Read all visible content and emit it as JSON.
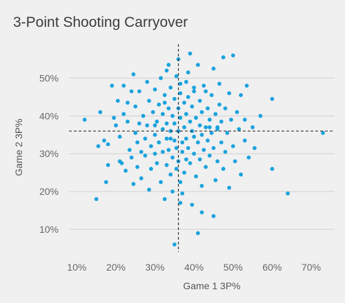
{
  "chart_data": {
    "type": "scatter",
    "title": "3-Point Shooting Carryover",
    "xlabel": "Game 1 3P%",
    "ylabel": "Game 2 3P%",
    "xlim": [
      8,
      76
    ],
    "ylim": [
      4,
      59
    ],
    "xticks": [
      10,
      20,
      30,
      40,
      50,
      60,
      70
    ],
    "yticks": [
      10,
      20,
      30,
      40,
      50
    ],
    "xtick_labels": [
      "10%",
      "20%",
      "30%",
      "40%",
      "50%",
      "60%",
      "70%"
    ],
    "ytick_labels": [
      "10%",
      "20%",
      "30%",
      "40%",
      "50%"
    ],
    "grid": "horizontal",
    "reference_lines": {
      "x": 36,
      "y": 36,
      "style": "dashed"
    },
    "point_color": "#1ba3dd",
    "points": [
      [
        12.0,
        39.0
      ],
      [
        15.0,
        18.0
      ],
      [
        15.5,
        32.0
      ],
      [
        16.0,
        41.0
      ],
      [
        17.0,
        33.5
      ],
      [
        17.5,
        22.5
      ],
      [
        18.0,
        27.0
      ],
      [
        18.0,
        32.5
      ],
      [
        19.0,
        48.0
      ],
      [
        19.5,
        39.5
      ],
      [
        20.0,
        37.5
      ],
      [
        20.5,
        44.0
      ],
      [
        21.0,
        28.0
      ],
      [
        21.0,
        34.5
      ],
      [
        21.5,
        27.5
      ],
      [
        22.0,
        48.0
      ],
      [
        22.0,
        40.5
      ],
      [
        22.5,
        25.5
      ],
      [
        23.0,
        43.5
      ],
      [
        23.0,
        38.5
      ],
      [
        23.5,
        31.0
      ],
      [
        24.0,
        46.5
      ],
      [
        24.0,
        29.0
      ],
      [
        24.5,
        22.0
      ],
      [
        24.5,
        51.0
      ],
      [
        25.0,
        35.5
      ],
      [
        25.0,
        42.5
      ],
      [
        25.5,
        33.0
      ],
      [
        25.5,
        26.5
      ],
      [
        26.0,
        38.0
      ],
      [
        26.0,
        46.5
      ],
      [
        26.5,
        30.5
      ],
      [
        26.5,
        23.5
      ],
      [
        27.0,
        40.0
      ],
      [
        27.5,
        34.0
      ],
      [
        27.5,
        29.5
      ],
      [
        28.0,
        49.0
      ],
      [
        28.0,
        37.5
      ],
      [
        28.5,
        44.0
      ],
      [
        28.5,
        20.5
      ],
      [
        29.0,
        32.0
      ],
      [
        29.0,
        26.0
      ],
      [
        29.5,
        41.0
      ],
      [
        30.0,
        47.0
      ],
      [
        30.0,
        35.0
      ],
      [
        30.0,
        30.0
      ],
      [
        30.5,
        38.5
      ],
      [
        30.5,
        27.5
      ],
      [
        31.0,
        43.0
      ],
      [
        31.0,
        33.0
      ],
      [
        31.5,
        22.5
      ],
      [
        31.5,
        50.0
      ],
      [
        32.0,
        36.5
      ],
      [
        32.0,
        30.5
      ],
      [
        32.0,
        40.5
      ],
      [
        32.5,
        45.5
      ],
      [
        32.5,
        18.0
      ],
      [
        33.0,
        34.0
      ],
      [
        33.0,
        27.0
      ],
      [
        33.0,
        38.0
      ],
      [
        33.5,
        53.5
      ],
      [
        33.5,
        42.0
      ],
      [
        33.5,
        31.0
      ],
      [
        34.0,
        47.5
      ],
      [
        34.0,
        36.0
      ],
      [
        34.0,
        24.5
      ],
      [
        34.5,
        40.0
      ],
      [
        34.5,
        29.0
      ],
      [
        34.5,
        20.0
      ],
      [
        35.0,
        44.5
      ],
      [
        35.0,
        33.5
      ],
      [
        35.0,
        38.0
      ],
      [
        35.5,
        50.5
      ],
      [
        35.5,
        26.0
      ],
      [
        35.5,
        31.5
      ],
      [
        36.0,
        42.0
      ],
      [
        36.0,
        36.0
      ],
      [
        36.0,
        28.0
      ],
      [
        36.0,
        55.0
      ],
      [
        36.5,
        22.5
      ],
      [
        36.5,
        39.5
      ],
      [
        36.5,
        46.0
      ],
      [
        37.0,
        33.0
      ],
      [
        37.0,
        30.5
      ],
      [
        37.0,
        19.5
      ],
      [
        37.5,
        43.5
      ],
      [
        37.5,
        37.0
      ],
      [
        37.5,
        25.0
      ],
      [
        38.0,
        49.0
      ],
      [
        38.0,
        40.5
      ],
      [
        38.0,
        34.0
      ],
      [
        38.5,
        31.5
      ],
      [
        38.5,
        45.0
      ],
      [
        39.0,
        56.5
      ],
      [
        39.0,
        38.5
      ],
      [
        39.0,
        27.5
      ],
      [
        39.5,
        36.0
      ],
      [
        39.5,
        42.5
      ],
      [
        39.5,
        16.5
      ],
      [
        40.0,
        34.5
      ],
      [
        40.0,
        30.0
      ],
      [
        40.0,
        47.5
      ],
      [
        40.5,
        39.5
      ],
      [
        40.5,
        24.0
      ],
      [
        41.0,
        53.5
      ],
      [
        41.0,
        33.0
      ],
      [
        41.5,
        37.5
      ],
      [
        41.5,
        44.0
      ],
      [
        41.5,
        28.5
      ],
      [
        42.0,
        41.0
      ],
      [
        42.0,
        35.0
      ],
      [
        42.0,
        21.5
      ],
      [
        42.5,
        31.0
      ],
      [
        42.5,
        48.0
      ],
      [
        43.0,
        37.0
      ],
      [
        43.0,
        26.5
      ],
      [
        43.5,
        42.0
      ],
      [
        43.5,
        33.5
      ],
      [
        44.0,
        39.0
      ],
      [
        44.0,
        29.5
      ],
      [
        44.5,
        45.5
      ],
      [
        44.5,
        35.5
      ],
      [
        45.0,
        52.5
      ],
      [
        45.0,
        31.5
      ],
      [
        45.5,
        40.5
      ],
      [
        45.5,
        23.0
      ],
      [
        46.0,
        36.5
      ],
      [
        46.0,
        28.0
      ],
      [
        46.5,
        48.5
      ],
      [
        46.5,
        43.0
      ],
      [
        47.0,
        33.0
      ],
      [
        47.0,
        38.5
      ],
      [
        47.5,
        55.5
      ],
      [
        47.5,
        26.0
      ],
      [
        48.0,
        42.0
      ],
      [
        48.0,
        30.5
      ],
      [
        48.5,
        35.5
      ],
      [
        49.0,
        46.0
      ],
      [
        49.0,
        21.0
      ],
      [
        49.5,
        39.0
      ],
      [
        50.0,
        32.0
      ],
      [
        50.0,
        56.0
      ],
      [
        50.5,
        28.0
      ],
      [
        51.0,
        41.0
      ],
      [
        51.5,
        36.5
      ],
      [
        52.0,
        45.5
      ],
      [
        52.0,
        24.5
      ],
      [
        53.0,
        39.0
      ],
      [
        53.0,
        33.5
      ],
      [
        53.5,
        48.0
      ],
      [
        54.0,
        29.0
      ],
      [
        55.0,
        37.0
      ],
      [
        55.5,
        31.5
      ],
      [
        57.0,
        40.0
      ],
      [
        60.0,
        26.0
      ],
      [
        60.0,
        44.5
      ],
      [
        64.0,
        19.5
      ],
      [
        73.0,
        35.5
      ],
      [
        41.0,
        9.0
      ],
      [
        42.0,
        14.5
      ],
      [
        45.0,
        13.5
      ],
      [
        35.0,
        6.0
      ],
      [
        36.5,
        17.0
      ],
      [
        33.0,
        52.0
      ],
      [
        38.5,
        51.5
      ],
      [
        40.0,
        46.5
      ],
      [
        36.5,
        48.5
      ],
      [
        32.5,
        43.5
      ],
      [
        30.0,
        37.5
      ],
      [
        43.0,
        46.5
      ],
      [
        46.0,
        37.0
      ],
      [
        38.0,
        28.5
      ],
      [
        34.0,
        34.0
      ],
      [
        44.0,
        37.0
      ]
    ]
  }
}
